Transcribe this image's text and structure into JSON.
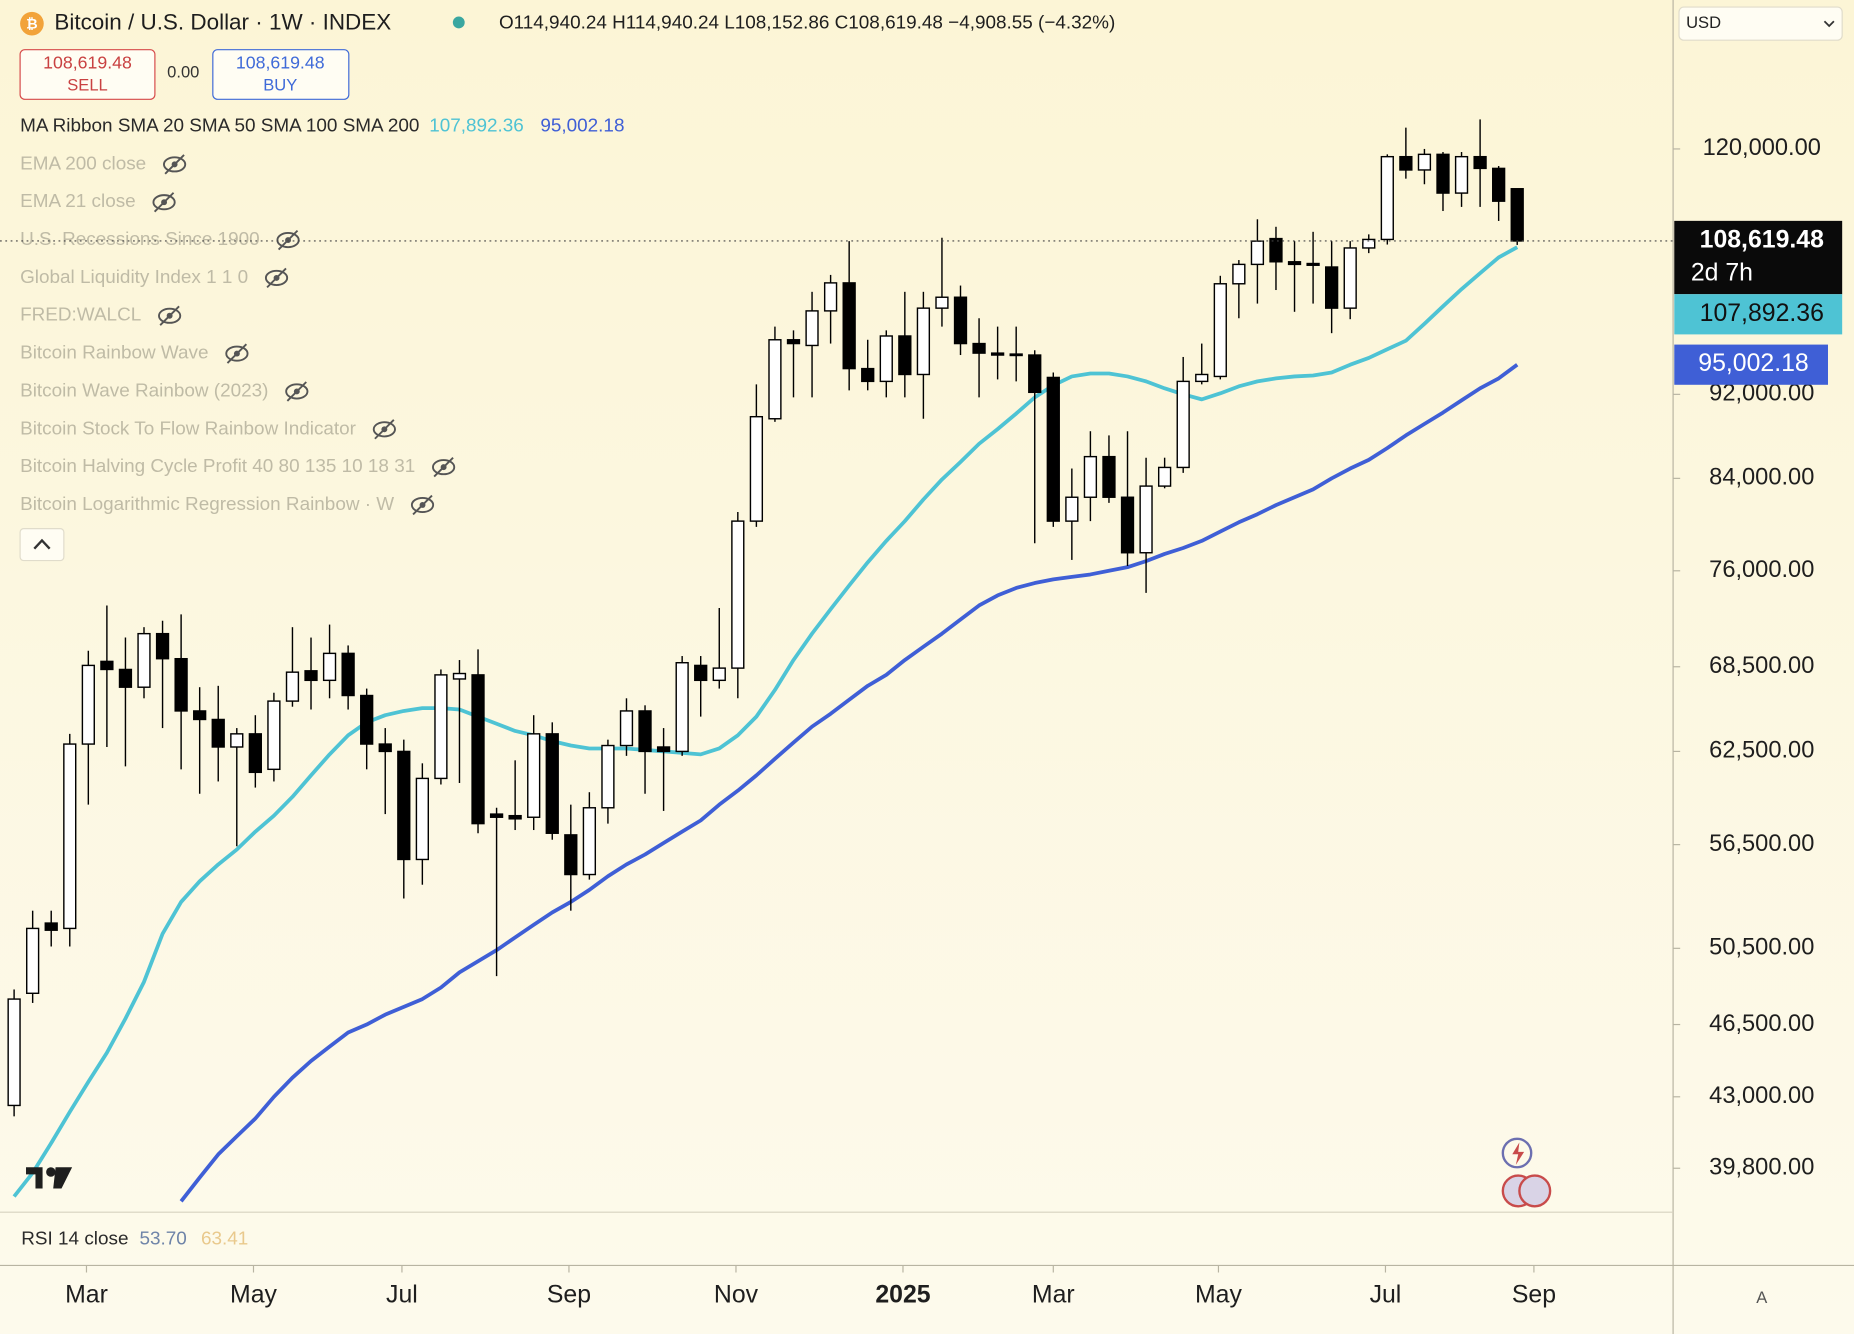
{
  "header": {
    "symbol": "Bitcoin / U.S. Dollar · 1W · INDEX",
    "ohlc": "O114,940.24 H114,940.24 L108,152.86 C108,619.48 −4,908.55 (−4.32%)"
  },
  "trade": {
    "sell_price": "108,619.48",
    "sell": "SELL",
    "spread": "0.00",
    "buy_price": "108,619.48",
    "buy": "BUY"
  },
  "legend": {
    "ribbon": "MA Ribbon SMA 20 SMA 50 SMA 100 SMA 200",
    "ma_values": [
      "107,892.36",
      "95,002.18"
    ],
    "hidden": [
      "EMA 200 close",
      "EMA 21 close",
      "U.S. Recessions Since 1900",
      "Global Liquidity Index 1 1 0",
      "FRED:WALCL",
      "Bitcoin Rainbow Wave",
      "Bitcoin Wave Rainbow (2023)",
      "Bitcoin Stock To Flow Rainbow Indicator",
      "Bitcoin Halving Cycle Profit 40 80 135 10 18 31",
      "Bitcoin Logarithmic Regression Rainbow · W"
    ]
  },
  "rsi": {
    "label": "RSI 14 close",
    "values": [
      "53.70",
      "63.41"
    ]
  },
  "currency": "USD",
  "scale_mode": "A",
  "chart_data": {
    "type": "candlestick",
    "log": true,
    "countdown": "2d 7h",
    "up_color": "#ffffff",
    "down_color": "#000000",
    "ylim": [
      37950,
      141000
    ],
    "xlim": [
      -0.76,
      89.4
    ],
    "yticks": [
      {
        "value": 39800,
        "label": "39,800.00"
      },
      {
        "value": 43000,
        "label": "43,000.00"
      },
      {
        "value": 46500,
        "label": "46,500.00"
      },
      {
        "value": 50500,
        "label": "50,500.00"
      },
      {
        "value": 56500,
        "label": "56,500.00"
      },
      {
        "value": 62500,
        "label": "62,500.00"
      },
      {
        "value": 68500,
        "label": "68,500.00"
      },
      {
        "value": 76000,
        "label": "76,000.00"
      },
      {
        "value": 84000,
        "label": "84,000.00"
      },
      {
        "value": 92000,
        "label": "92,000.00"
      },
      {
        "value": 120000,
        "label": "120,000.00"
      }
    ],
    "xticks": [
      {
        "value": 3.9,
        "label": "Mar"
      },
      {
        "value": 12.9,
        "label": "May"
      },
      {
        "value": 20.9,
        "label": "Jul"
      },
      {
        "value": 29.9,
        "label": "Sep"
      },
      {
        "value": 38.9,
        "label": "Nov"
      },
      {
        "value": 47.9,
        "label": "2025"
      },
      {
        "value": 56,
        "label": "Mar"
      },
      {
        "value": 64.9,
        "label": "May"
      },
      {
        "value": 73.9,
        "label": "Jul"
      },
      {
        "value": 81.9,
        "label": "Sep"
      }
    ],
    "open": [
      42600,
      48100,
      51900,
      51600,
      63000,
      68900,
      68300,
      67000,
      71000,
      69100,
      65300,
      64700,
      62800,
      63700,
      61300,
      66000,
      68200,
      67500,
      69500,
      66400,
      63000,
      62500,
      55600,
      60700,
      67600,
      67900,
      58400,
      58300,
      58200,
      63700,
      57100,
      54700,
      58800,
      62900,
      65300,
      62800,
      62500,
      68600,
      67500,
      68400,
      80200,
      89600,
      97600,
      97000,
      100700,
      103800,
      94600,
      93300,
      98000,
      94000,
      101000,
      102200,
      97200,
      96200,
      96100,
      96000,
      93700,
      80200,
      82300,
      86000,
      82300,
      77500,
      83300,
      85000,
      93300,
      93800,
      103700,
      105900,
      108900,
      106200,
      106000,
      105600,
      101000,
      107800,
      108800,
      119000,
      117300,
      119300,
      114400,
      119000,
      117500,
      114940.24
    ],
    "high": [
      48300,
      52600,
      52600,
      63700,
      69700,
      73200,
      70700,
      71500,
      72000,
      72500,
      67000,
      67100,
      64100,
      65000,
      66600,
      71500,
      70700,
      71700,
      70100,
      66900,
      64100,
      63300,
      61700,
      68300,
      69000,
      69800,
      58800,
      61900,
      65000,
      64500,
      59000,
      59800,
      63300,
      66200,
      65700,
      64100,
      69300,
      69300,
      73000,
      81000,
      93000,
      99000,
      98600,
      102800,
      104700,
      108600,
      97600,
      98600,
      102800,
      102800,
      109000,
      103500,
      99900,
      99000,
      99000,
      96500,
      94200,
      84900,
      88400,
      88000,
      88400,
      85900,
      85900,
      95800,
      97200,
      104600,
      106400,
      111200,
      110300,
      108600,
      109700,
      108600,
      108600,
      109400,
      119300,
      122800,
      120000,
      119600,
      119600,
      123900,
      117800,
      114940.24
    ],
    "low": [
      42100,
      47600,
      50600,
      50600,
      59000,
      62800,
      61500,
      66200,
      64100,
      61300,
      59700,
      60500,
      56400,
      60100,
      60500,
      65600,
      65400,
      66200,
      65400,
      61300,
      58400,
      53300,
      54100,
      60300,
      60400,
      57200,
      49000,
      57400,
      57400,
      56800,
      52600,
      54400,
      57800,
      62200,
      59700,
      58600,
      62200,
      64900,
      66900,
      66200,
      79700,
      89300,
      91700,
      91700,
      97200,
      92400,
      92400,
      91700,
      91700,
      89600,
      99000,
      96000,
      91700,
      93500,
      93300,
      78300,
      79700,
      76900,
      80200,
      81800,
      76400,
      74200,
      83100,
      84500,
      93000,
      93500,
      99900,
      101500,
      103000,
      100600,
      101500,
      98300,
      99800,
      107200,
      108200,
      116200,
      115500,
      112200,
      112700,
      112700,
      111000,
      108152.86
    ],
    "close": [
      47800,
      51600,
      51500,
      63000,
      68600,
      68300,
      67000,
      71000,
      69100,
      65300,
      64700,
      62800,
      63700,
      61100,
      66000,
      68100,
      67500,
      69500,
      66400,
      63000,
      62500,
      55600,
      60700,
      67900,
      68000,
      57800,
      58200,
      58100,
      63700,
      57200,
      54700,
      58800,
      62900,
      65300,
      62500,
      62500,
      68800,
      67500,
      68400,
      80200,
      89800,
      97600,
      97200,
      100700,
      103800,
      94600,
      93300,
      98000,
      94000,
      101000,
      102200,
      97200,
      96200,
      96000,
      96000,
      92200,
      80200,
      82300,
      86000,
      82300,
      77500,
      83300,
      85000,
      93300,
      94000,
      103700,
      105900,
      108600,
      106200,
      105900,
      105800,
      101000,
      107800,
      108800,
      119000,
      117300,
      119300,
      114400,
      119000,
      117500,
      113400,
      108619.48
    ],
    "overlays": [
      {
        "color": "#4ec3d4",
        "values": [
          38600,
          39600,
          40900,
          42300,
          43700,
          45100,
          46800,
          48700,
          51300,
          53100,
          54300,
          55300,
          56200,
          57300,
          58300,
          59500,
          60900,
          62300,
          63600,
          64500,
          65000,
          65300,
          65500,
          65500,
          65400,
          64900,
          64400,
          63900,
          63600,
          63200,
          62900,
          62700,
          62700,
          62700,
          62600,
          62500,
          62400,
          62300,
          62700,
          63600,
          64900,
          66800,
          69000,
          71000,
          72900,
          74800,
          76700,
          78500,
          80200,
          82100,
          83900,
          85500,
          87200,
          88600,
          90100,
          91700,
          92900,
          93800,
          94100,
          94100,
          93800,
          93300,
          92600,
          92000,
          91500,
          92100,
          92800,
          93300,
          93600,
          93800,
          93900,
          94200,
          95000,
          95700,
          96600,
          97500,
          99300,
          101200,
          103100,
          104900,
          106700,
          107892.36
        ]
      },
      {
        "color": "#3f5fd6",
        "values": [
          null,
          null,
          null,
          null,
          null,
          null,
          null,
          null,
          null,
          38400,
          39400,
          40400,
          41200,
          42000,
          43000,
          43900,
          44700,
          45400,
          46100,
          46500,
          47000,
          47400,
          47800,
          48400,
          49200,
          49800,
          50400,
          51100,
          51800,
          52500,
          53100,
          53800,
          54600,
          55300,
          55900,
          56600,
          57300,
          58000,
          59000,
          59900,
          60900,
          62000,
          63100,
          64200,
          65100,
          66100,
          67100,
          67900,
          69000,
          70000,
          71000,
          72100,
          73200,
          74000,
          74600,
          75000,
          75300,
          75500,
          75700,
          76000,
          76300,
          76800,
          77400,
          77900,
          78500,
          79300,
          80100,
          80800,
          81600,
          82300,
          83000,
          84000,
          84900,
          85700,
          86800,
          88000,
          89100,
          90200,
          91400,
          92600,
          93600,
          95002.18
        ]
      }
    ]
  }
}
